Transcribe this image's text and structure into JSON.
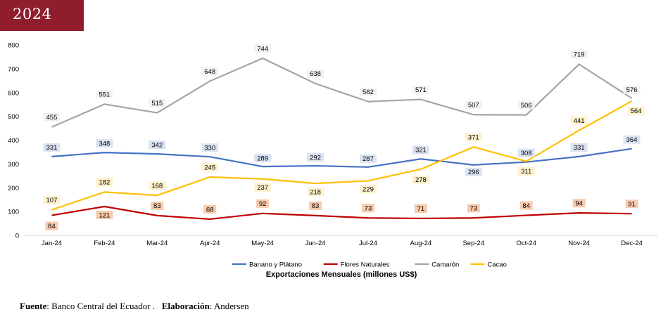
{
  "header": {
    "year": "2024"
  },
  "footer": {
    "fuente_label": "Fuente",
    "fuente_value": ": Banco Central del Ecuador  .",
    "elaboracion_label": "Elaboración",
    "elaboracion_value": ": Andersen"
  },
  "chart_data": {
    "type": "line",
    "title": "",
    "xlabel": "Exportaciones Mensuales (millones US$)",
    "ylabel": "",
    "ylim": [
      0,
      800
    ],
    "yticks": [
      0,
      100,
      200,
      300,
      400,
      500,
      600,
      700,
      800
    ],
    "grid": false,
    "legend_position": "bottom",
    "categories": [
      "Jan-24",
      "Feb-24",
      "Mar-24",
      "Apr-24",
      "May-24",
      "Jun-24",
      "Jul-24",
      "Aug-24",
      "Sep-24",
      "Oct-24",
      "Nov-24",
      "Dec-24"
    ],
    "series": [
      {
        "name": "Banano y Plátano",
        "color": "#4472c4",
        "label_bg": "#dae3f3",
        "values": [
          331,
          348,
          342,
          330,
          289,
          292,
          287,
          321,
          296,
          308,
          331,
          364
        ]
      },
      {
        "name": "Flores Naturales",
        "color": "#c00000",
        "label_bg": "#f8cbad",
        "values": [
          84,
          121,
          83,
          68,
          92,
          83,
          73,
          71,
          73,
          84,
          94,
          91
        ]
      },
      {
        "name": "Camarón",
        "color": "#a5a5a5",
        "label_bg": "#f2f2f2",
        "values": [
          455,
          551,
          515,
          648,
          744,
          638,
          562,
          571,
          507,
          506,
          719,
          576
        ]
      },
      {
        "name": "Cacao",
        "color": "#ffc000",
        "label_bg": "#fff2cc",
        "values": [
          107,
          182,
          168,
          245,
          237,
          218,
          229,
          278,
          371,
          311,
          441,
          564
        ]
      }
    ]
  }
}
